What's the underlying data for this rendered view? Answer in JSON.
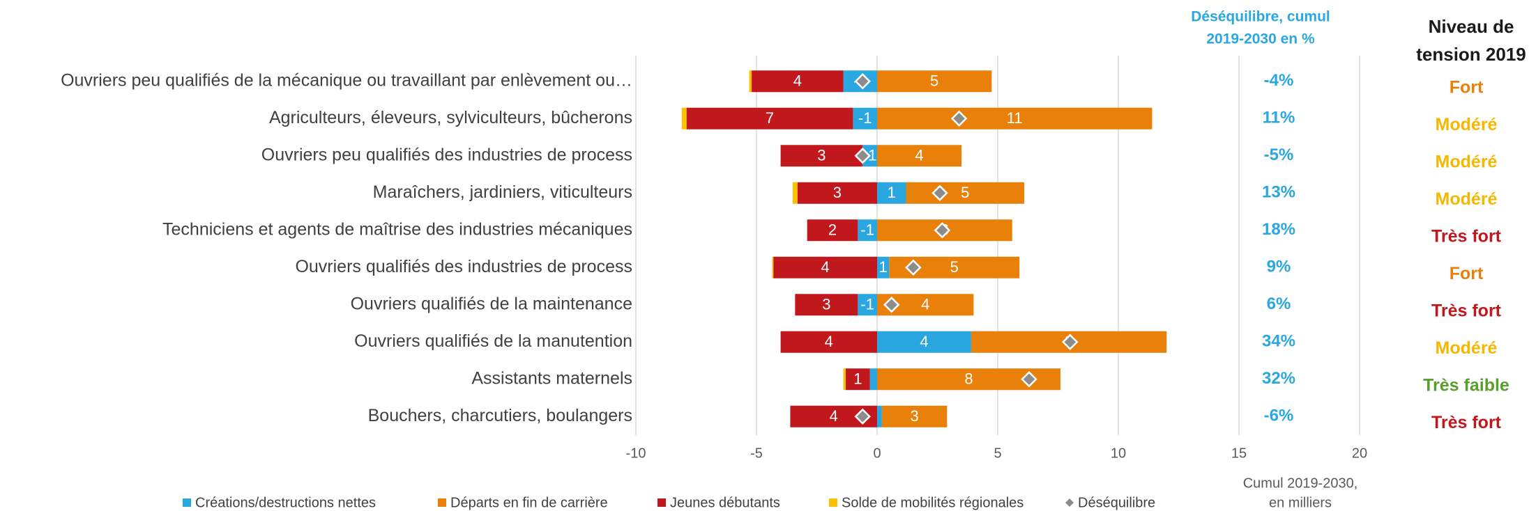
{
  "chart_data": {
    "type": "bar",
    "orientation": "horizontal",
    "stacked": true,
    "categories": [
      "Ouvriers peu qualifiés de la mécanique ou travaillant par enlèvement ou…",
      "Agriculteurs, éleveurs, sylviculteurs, bûcherons",
      "Ouvriers peu qualifiés des industries de process",
      "Maraîchers, jardiniers, viticulteurs",
      "Techniciens et agents de maîtrise des industries mécaniques",
      "Ouvriers qualifiés des industries de process",
      "Ouvriers qualifiés de la maintenance",
      "Ouvriers qualifiés de la manutention",
      "Assistants maternels",
      "Bouchers, charcutiers, boulangers"
    ],
    "series": [
      {
        "name": "Créations/destructions nettes",
        "color": "#2aa7e1",
        "values": [
          -1.4,
          -1.0,
          -0.6,
          1.2,
          -0.8,
          0.5,
          -0.8,
          3.9,
          -0.3,
          0.2
        ],
        "value_labels": [
          "-1",
          "-1",
          "-1",
          "1",
          "-1",
          "1",
          "-1",
          "4",
          null,
          null
        ]
      },
      {
        "name": "Départs en fin de carrière",
        "color": "#e8800a",
        "values": [
          4.75,
          11.4,
          3.5,
          4.9,
          5.6,
          5.4,
          4.0,
          8.1,
          7.6,
          2.7
        ],
        "value_labels": [
          "5",
          "11",
          "4",
          "5",
          "6",
          "5",
          "4",
          "8",
          "8",
          "3"
        ]
      },
      {
        "name": "Jeunes débutants",
        "color": "#c0181c",
        "values": [
          -3.8,
          -6.9,
          -3.4,
          -3.3,
          -2.1,
          -4.3,
          -2.6,
          -4.0,
          -1.0,
          -3.6
        ],
        "value_labels": [
          "4",
          "7",
          "3",
          "3",
          "2",
          "4",
          "3",
          "4",
          "1",
          "4"
        ]
      },
      {
        "name": "Solde de mobilités régionales",
        "color": "#ffc000",
        "values": [
          -0.1,
          -0.2,
          0,
          -0.2,
          0,
          -0.05,
          0,
          0,
          -0.1,
          0
        ]
      },
      {
        "name": "Déséquilibre",
        "color": "#8c8c8c",
        "marker": "diamond",
        "values": [
          -0.6,
          3.4,
          -0.6,
          2.6,
          2.7,
          1.5,
          0.6,
          8.0,
          6.3,
          -0.6
        ]
      }
    ],
    "xlim": [
      -10,
      20
    ],
    "xticks": [
      -10,
      -5,
      0,
      5,
      10,
      15,
      20
    ],
    "grid": true,
    "xlabel_lines": [
      "Cumul 2019-2030,",
      "en milliers"
    ],
    "legend": "bottom",
    "imbalance_pct": {
      "title_lines": [
        "Déséquilibre, cumul",
        "2019-2030 en %"
      ],
      "color": "#2aa7e1",
      "values": [
        -4,
        11,
        -5,
        13,
        18,
        9,
        6,
        34,
        32,
        -6
      ],
      "value_labels": [
        "-4%",
        "11%",
        "-5%",
        "13%",
        "18%",
        "9%",
        "6%",
        "34%",
        "32%",
        "-6%"
      ]
    },
    "tension": {
      "title_lines": [
        "Niveau de",
        "tension 2019"
      ],
      "values": [
        "Fort",
        "Modéré",
        "Modéré",
        "Modéré",
        "Très fort",
        "Fort",
        "Très fort",
        "Modéré",
        "Très faible",
        "Très fort"
      ],
      "colors": {
        "Fort": "#e8800a",
        "Modéré": "#f5b800",
        "Très fort": "#c0181c",
        "Très faible": "#5a9e2e"
      }
    }
  }
}
